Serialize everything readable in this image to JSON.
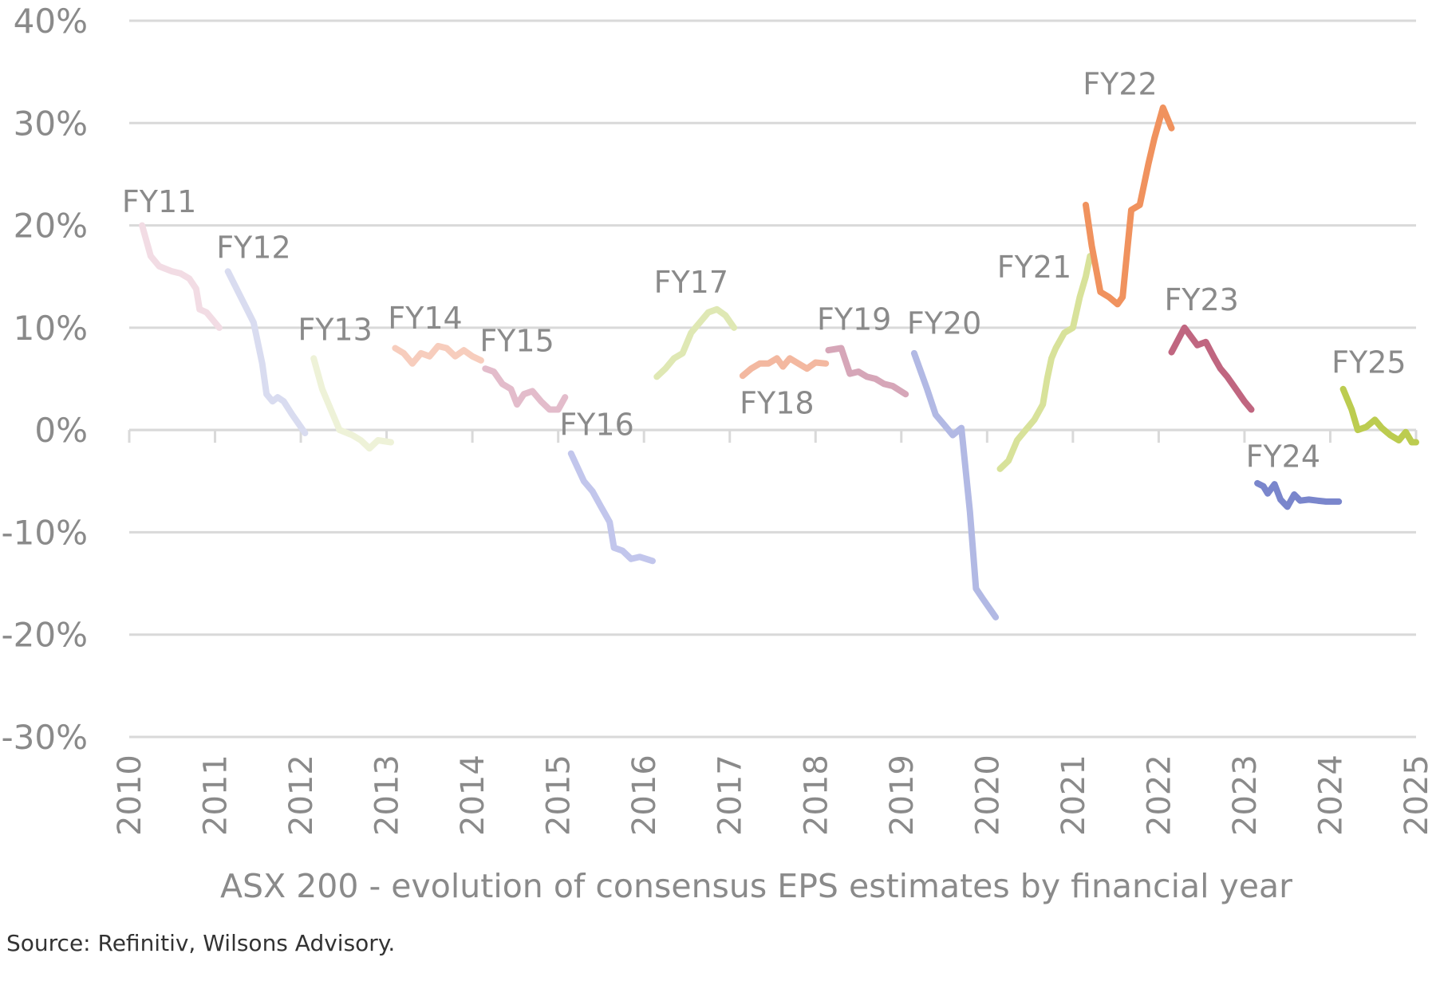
{
  "chart_data": {
    "type": "line",
    "title": "ASX 200 - evolution of consensus EPS estimates by financial year",
    "xlabel": "",
    "ylabel": "",
    "x_ticks": [
      "2010",
      "2011",
      "2012",
      "2013",
      "2014",
      "2015",
      "2016",
      "2017",
      "2018",
      "2019",
      "2020",
      "2021",
      "2022",
      "2023",
      "2024",
      "2025"
    ],
    "y_ticks": [
      "40%",
      "30%",
      "20%",
      "10%",
      "0%",
      "-10%",
      "-20%",
      "-30%"
    ],
    "xlim": [
      2010,
      2025
    ],
    "ylim": [
      -30,
      40
    ],
    "grid": true,
    "legend": "none",
    "series": [
      {
        "name": "FY11",
        "color": "#f2dce4",
        "points": [
          [
            2010.15,
            20
          ],
          [
            2010.25,
            17
          ],
          [
            2010.35,
            16
          ],
          [
            2010.5,
            15.5
          ],
          [
            2010.6,
            15.3
          ],
          [
            2010.7,
            14.8
          ],
          [
            2010.78,
            13.8
          ],
          [
            2010.82,
            11.8
          ],
          [
            2010.9,
            11.5
          ],
          [
            2010.97,
            10.8
          ],
          [
            2011.05,
            10
          ]
        ]
      },
      {
        "name": "FY12",
        "color": "#d9dcf0",
        "points": [
          [
            2011.15,
            15.5
          ],
          [
            2011.3,
            13
          ],
          [
            2011.45,
            10.5
          ],
          [
            2011.55,
            6.5
          ],
          [
            2011.6,
            3.5
          ],
          [
            2011.67,
            2.8
          ],
          [
            2011.73,
            3.2
          ],
          [
            2011.8,
            2.8
          ],
          [
            2011.9,
            1.5
          ],
          [
            2012.05,
            -0.3
          ]
        ]
      },
      {
        "name": "FY13",
        "color": "#eef2d8",
        "points": [
          [
            2012.15,
            7
          ],
          [
            2012.25,
            4
          ],
          [
            2012.35,
            2
          ],
          [
            2012.45,
            0
          ],
          [
            2012.6,
            -0.5
          ],
          [
            2012.7,
            -1
          ],
          [
            2012.8,
            -1.8
          ],
          [
            2012.9,
            -1
          ],
          [
            2013.05,
            -1.2
          ]
        ]
      },
      {
        "name": "FY14",
        "color": "#f7cdbd",
        "points": [
          [
            2013.1,
            8
          ],
          [
            2013.2,
            7.5
          ],
          [
            2013.3,
            6.5
          ],
          [
            2013.4,
            7.5
          ],
          [
            2013.5,
            7.2
          ],
          [
            2013.6,
            8.2
          ],
          [
            2013.7,
            8
          ],
          [
            2013.8,
            7.2
          ],
          [
            2013.9,
            7.8
          ],
          [
            2014.0,
            7.2
          ],
          [
            2014.1,
            6.8
          ]
        ]
      },
      {
        "name": "FY15",
        "color": "#e3bccb",
        "points": [
          [
            2014.15,
            6
          ],
          [
            2014.25,
            5.7
          ],
          [
            2014.35,
            4.5
          ],
          [
            2014.45,
            4
          ],
          [
            2014.52,
            2.5
          ],
          [
            2014.6,
            3.5
          ],
          [
            2014.7,
            3.8
          ],
          [
            2014.8,
            2.8
          ],
          [
            2014.9,
            2
          ],
          [
            2015.0,
            2
          ],
          [
            2015.08,
            3.2
          ]
        ]
      },
      {
        "name": "FY16",
        "color": "#c2c6ec",
        "points": [
          [
            2015.15,
            -2.3
          ],
          [
            2015.3,
            -5
          ],
          [
            2015.4,
            -6
          ],
          [
            2015.5,
            -7.5
          ],
          [
            2015.6,
            -9
          ],
          [
            2015.65,
            -11.5
          ],
          [
            2015.75,
            -11.8
          ],
          [
            2015.85,
            -12.6
          ],
          [
            2015.95,
            -12.4
          ],
          [
            2016.1,
            -12.8
          ]
        ]
      },
      {
        "name": "FY17",
        "color": "#dfe8b4",
        "points": [
          [
            2016.15,
            5.2
          ],
          [
            2016.25,
            6
          ],
          [
            2016.35,
            7
          ],
          [
            2016.45,
            7.5
          ],
          [
            2016.55,
            9.5
          ],
          [
            2016.65,
            10.5
          ],
          [
            2016.75,
            11.5
          ],
          [
            2016.85,
            11.8
          ],
          [
            2016.95,
            11.2
          ],
          [
            2017.05,
            10
          ]
        ]
      },
      {
        "name": "FY18",
        "color": "#f3b8a0",
        "points": [
          [
            2017.15,
            5.3
          ],
          [
            2017.25,
            6
          ],
          [
            2017.35,
            6.5
          ],
          [
            2017.45,
            6.5
          ],
          [
            2017.55,
            7
          ],
          [
            2017.62,
            6.2
          ],
          [
            2017.7,
            7
          ],
          [
            2017.8,
            6.5
          ],
          [
            2017.9,
            6
          ],
          [
            2018.0,
            6.6
          ],
          [
            2018.12,
            6.5
          ]
        ]
      },
      {
        "name": "FY19",
        "color": "#d6a6b8",
        "points": [
          [
            2018.15,
            7.8
          ],
          [
            2018.3,
            8
          ],
          [
            2018.4,
            5.5
          ],
          [
            2018.5,
            5.7
          ],
          [
            2018.6,
            5.2
          ],
          [
            2018.7,
            5
          ],
          [
            2018.8,
            4.5
          ],
          [
            2018.9,
            4.3
          ],
          [
            2019.05,
            3.5
          ]
        ]
      },
      {
        "name": "FY20",
        "color": "#b2b9e4",
        "points": [
          [
            2019.15,
            7.5
          ],
          [
            2019.3,
            4
          ],
          [
            2019.4,
            1.5
          ],
          [
            2019.5,
            0.5
          ],
          [
            2019.6,
            -0.5
          ],
          [
            2019.7,
            0.2
          ],
          [
            2019.8,
            -8
          ],
          [
            2019.87,
            -15.5
          ],
          [
            2019.95,
            -16.5
          ],
          [
            2020.1,
            -18.3
          ]
        ]
      },
      {
        "name": "FY21",
        "color": "#d8e29a",
        "points": [
          [
            2020.15,
            -3.8
          ],
          [
            2020.25,
            -3
          ],
          [
            2020.35,
            -1
          ],
          [
            2020.45,
            0
          ],
          [
            2020.55,
            1
          ],
          [
            2020.65,
            2.5
          ],
          [
            2020.7,
            5
          ],
          [
            2020.75,
            7
          ],
          [
            2020.8,
            8
          ],
          [
            2020.9,
            9.5
          ],
          [
            2021.0,
            10
          ],
          [
            2021.08,
            13
          ],
          [
            2021.15,
            15
          ],
          [
            2021.2,
            17
          ]
        ]
      },
      {
        "name": "FY22",
        "color": "#f0925e",
        "points": [
          [
            2021.15,
            22
          ],
          [
            2021.22,
            18
          ],
          [
            2021.32,
            13.5
          ],
          [
            2021.42,
            13
          ],
          [
            2021.52,
            12.3
          ],
          [
            2021.58,
            13
          ],
          [
            2021.68,
            21.5
          ],
          [
            2021.78,
            22
          ],
          [
            2021.88,
            26
          ],
          [
            2021.95,
            28.5
          ],
          [
            2022.05,
            31.5
          ],
          [
            2022.15,
            29.5
          ]
        ]
      },
      {
        "name": "FY23",
        "color": "#c06680",
        "points": [
          [
            2022.15,
            7.6
          ],
          [
            2022.3,
            10
          ],
          [
            2022.45,
            8.3
          ],
          [
            2022.55,
            8.6
          ],
          [
            2022.65,
            7
          ],
          [
            2022.72,
            6
          ],
          [
            2022.8,
            5.2
          ],
          [
            2022.9,
            4
          ],
          [
            2023.0,
            2.8
          ],
          [
            2023.08,
            2
          ]
        ]
      },
      {
        "name": "FY24",
        "color": "#7a86cc",
        "points": [
          [
            2023.15,
            -5.2
          ],
          [
            2023.22,
            -5.5
          ],
          [
            2023.27,
            -6.2
          ],
          [
            2023.35,
            -5.3
          ],
          [
            2023.42,
            -6.8
          ],
          [
            2023.5,
            -7.5
          ],
          [
            2023.58,
            -6.3
          ],
          [
            2023.65,
            -6.9
          ],
          [
            2023.75,
            -6.8
          ],
          [
            2023.85,
            -6.9
          ],
          [
            2023.95,
            -7
          ],
          [
            2024.1,
            -7
          ]
        ]
      },
      {
        "name": "FY25",
        "color": "#bccc50",
        "points": [
          [
            2024.15,
            4
          ],
          [
            2024.25,
            2
          ],
          [
            2024.32,
            0
          ],
          [
            2024.42,
            0.3
          ],
          [
            2024.52,
            1
          ],
          [
            2024.6,
            0.2
          ],
          [
            2024.7,
            -0.5
          ],
          [
            2024.8,
            -1
          ],
          [
            2024.88,
            -0.2
          ],
          [
            2024.95,
            -1.2
          ],
          [
            2025.0,
            -1.2
          ]
        ]
      }
    ],
    "annotations": [
      {
        "text": "FY11",
        "x": 2010.35,
        "y": 21.3
      },
      {
        "text": "FY12",
        "x": 2011.45,
        "y": 16.8
      },
      {
        "text": "FY13",
        "x": 2012.4,
        "y": 8.8
      },
      {
        "text": "FY14",
        "x": 2013.45,
        "y": 9.9
      },
      {
        "text": "FY15",
        "x": 2014.52,
        "y": 7.7
      },
      {
        "text": "FY16",
        "x": 2015.45,
        "y": -0.5
      },
      {
        "text": "FY17",
        "x": 2016.55,
        "y": 13.4
      },
      {
        "text": "FY18",
        "x": 2017.55,
        "y": 1.6
      },
      {
        "text": "FY19",
        "x": 2018.45,
        "y": 9.8
      },
      {
        "text": "FY20",
        "x": 2019.5,
        "y": 9.4
      },
      {
        "text": "FY21",
        "x": 2020.55,
        "y": 14.9
      },
      {
        "text": "FY22",
        "x": 2021.55,
        "y": 32.8
      },
      {
        "text": "FY23",
        "x": 2022.5,
        "y": 11.7
      },
      {
        "text": "FY24",
        "x": 2023.45,
        "y": -3.6
      },
      {
        "text": "FY25",
        "x": 2024.45,
        "y": 5.6
      }
    ]
  },
  "source": "Source: Refinitiv, Wilsons Advisory."
}
